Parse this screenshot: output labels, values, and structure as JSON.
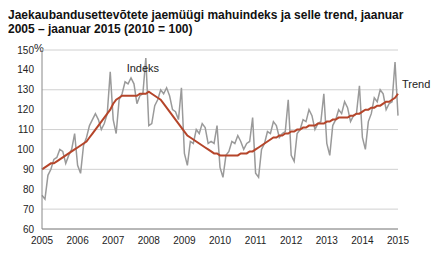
{
  "chart_data": {
    "type": "line",
    "title": "Jaekaubandusettevõtete jaemüügi mahuindeks ja selle trend, jaanuar 2005 – jaanuar 2015 (2010 = 100)",
    "y_label": "%",
    "categories": [
      "2005",
      null,
      null,
      null,
      null,
      null,
      null,
      null,
      null,
      null,
      null,
      null,
      "2006",
      null,
      null,
      null,
      null,
      null,
      null,
      null,
      null,
      null,
      null,
      null,
      "2007",
      null,
      null,
      null,
      null,
      null,
      null,
      null,
      null,
      null,
      null,
      null,
      "2008",
      null,
      null,
      null,
      null,
      null,
      null,
      null,
      null,
      null,
      null,
      null,
      "2009",
      null,
      null,
      null,
      null,
      null,
      null,
      null,
      null,
      null,
      null,
      null,
      "2010",
      null,
      null,
      null,
      null,
      null,
      null,
      null,
      null,
      null,
      null,
      null,
      "2011",
      null,
      null,
      null,
      null,
      null,
      null,
      null,
      null,
      null,
      null,
      null,
      "2012",
      null,
      null,
      null,
      null,
      null,
      null,
      null,
      null,
      null,
      null,
      null,
      "2013",
      null,
      null,
      null,
      null,
      null,
      null,
      null,
      null,
      null,
      null,
      null,
      "2014",
      null,
      null,
      null,
      null,
      null,
      null,
      null,
      null,
      null,
      null,
      null,
      "2015"
    ],
    "series": [
      {
        "name": "Indeks",
        "color": "#9a9a9a",
        "values": [
          77,
          75,
          87,
          90,
          95,
          96,
          100,
          99,
          93,
          97,
          100,
          108,
          92,
          88,
          102,
          106,
          112,
          115,
          118,
          115,
          110,
          113,
          118,
          139,
          115,
          108,
          125,
          128,
          134,
          133,
          136,
          133,
          123,
          127,
          128,
          146,
          112,
          113,
          122,
          125,
          130,
          128,
          131,
          127,
          120,
          119,
          115,
          131,
          98,
          92,
          104,
          103,
          110,
          108,
          113,
          111,
          103,
          104,
          103,
          112,
          91,
          86,
          97,
          99,
          104,
          103,
          107,
          104,
          100,
          103,
          104,
          116,
          88,
          86,
          100,
          103,
          109,
          108,
          114,
          112,
          106,
          108,
          109,
          125,
          97,
          94,
          108,
          110,
          115,
          114,
          120,
          117,
          110,
          113,
          114,
          128,
          103,
          97,
          112,
          115,
          120,
          118,
          124,
          121,
          114,
          117,
          118,
          132,
          106,
          100,
          114,
          118,
          126,
          124,
          130,
          128,
          120,
          123,
          124,
          144,
          117
        ]
      },
      {
        "name": "Trend",
        "color": "#b5452a",
        "values": [
          90,
          91,
          92,
          93,
          93,
          94,
          95,
          96,
          97,
          98,
          99,
          100,
          101,
          102,
          103,
          104,
          106,
          108,
          110,
          112,
          114,
          116,
          118,
          120,
          123,
          125,
          126,
          127,
          127,
          127,
          127,
          127,
          127,
          128,
          128,
          128,
          129,
          128,
          127,
          126,
          125,
          123,
          121,
          119,
          117,
          115,
          113,
          111,
          109,
          107,
          106,
          105,
          104,
          103,
          102,
          101,
          100,
          99,
          98,
          98,
          97,
          97,
          97,
          97,
          97,
          97,
          97,
          98,
          98,
          98,
          99,
          99,
          100,
          101,
          102,
          103,
          104,
          105,
          106,
          106,
          107,
          107,
          108,
          108,
          109,
          109,
          110,
          110,
          111,
          111,
          112,
          112,
          112,
          113,
          113,
          113,
          114,
          114,
          115,
          115,
          116,
          116,
          116,
          116,
          117,
          117,
          118,
          118,
          119,
          120,
          120,
          121,
          121,
          122,
          122,
          123,
          124,
          124,
          125,
          126,
          128
        ]
      }
    ],
    "ylim": [
      60,
      150
    ],
    "yticks": [
      60,
      70,
      80,
      90,
      100,
      110,
      120,
      130,
      140,
      150
    ],
    "grid": true
  }
}
